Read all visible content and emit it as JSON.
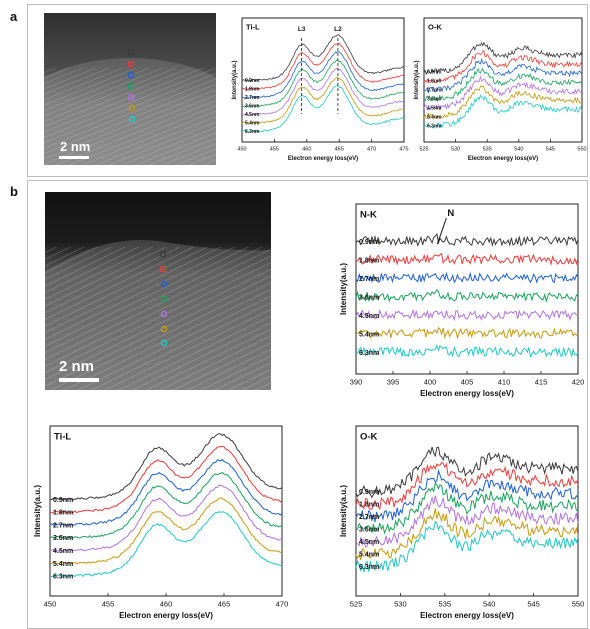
{
  "figure": {
    "panel_a_label": "a",
    "panel_b_label": "b",
    "scale_bar_a": "2 nm",
    "scale_bar_b": "2 nm",
    "colors": {
      "series": [
        "#3a3a3a",
        "#f03a3a",
        "#1f5fd8",
        "#1aa35c",
        "#b373e0",
        "#c79a10",
        "#22c7c7"
      ],
      "frame": "#bdbdbd"
    }
  },
  "chart_data": [
    {
      "id": "a-ti",
      "type": "line",
      "title": "Ti-L",
      "xlabel": "Electron energy loss(eV)",
      "ylabel": "Intensity(a.u.)",
      "xlim": [
        450,
        475
      ],
      "xticks": [
        450,
        455,
        460,
        465,
        470,
        475
      ],
      "peak_labels": [
        {
          "text": "L3",
          "x": 459.2
        },
        {
          "text": "L2",
          "x": 464.8
        }
      ],
      "series": [
        {
          "name": "0.9nm"
        },
        {
          "name": "1.8nm"
        },
        {
          "name": "2.7nm"
        },
        {
          "name": "3.6nm"
        },
        {
          "name": "4.5nm"
        },
        {
          "name": "5.4nm"
        },
        {
          "name": "6.3nm"
        }
      ]
    },
    {
      "id": "a-o",
      "type": "line",
      "title": "O-K",
      "xlabel": "Electron energy loss(eV)",
      "ylabel": "Intensity(a.u.)",
      "xlim": [
        525,
        550
      ],
      "xticks": [
        525,
        530,
        535,
        540,
        545,
        550
      ],
      "series": [
        {
          "name": "0.9nm"
        },
        {
          "name": "1.8nm"
        },
        {
          "name": "2.7nm"
        },
        {
          "name": "3.6nm"
        },
        {
          "name": "4.5nm"
        },
        {
          "name": "5.4nm"
        },
        {
          "name": "6.3nm"
        }
      ]
    },
    {
      "id": "b-n",
      "type": "line",
      "title": "N-K",
      "xlabel": "Electron energy loss(eV)",
      "ylabel": "Intensity(a.u.)",
      "xlim": [
        390,
        420
      ],
      "xticks": [
        390,
        395,
        400,
        405,
        410,
        415,
        420
      ],
      "annotation": {
        "text": "N",
        "x": 401
      },
      "series": [
        {
          "name": "0.9nm"
        },
        {
          "name": "1.8nm"
        },
        {
          "name": "2.7nm"
        },
        {
          "name": "3.6nm"
        },
        {
          "name": "4.5nm"
        },
        {
          "name": "5.4nm"
        },
        {
          "name": "6.3nm"
        }
      ]
    },
    {
      "id": "b-ti",
      "type": "line",
      "title": "Ti-L",
      "xlabel": "Electron energy loss(eV)",
      "ylabel": "Intensity(a.u.)",
      "xlim": [
        450,
        470
      ],
      "xticks": [
        450,
        455,
        460,
        465,
        470
      ],
      "series": [
        {
          "name": "0.9nm"
        },
        {
          "name": "1.8nm"
        },
        {
          "name": "2.7nm"
        },
        {
          "name": "3.6nm"
        },
        {
          "name": "4.5nm"
        },
        {
          "name": "5.4nm"
        },
        {
          "name": "6.3nm"
        }
      ]
    },
    {
      "id": "b-o",
      "type": "line",
      "title": "O-K",
      "xlabel": "Electron energy loss(eV)",
      "ylabel": "Intensity(a.u.)",
      "xlim": [
        525,
        550
      ],
      "xticks": [
        525,
        530,
        535,
        540,
        545,
        550
      ],
      "series": [
        {
          "name": "0.9nm"
        },
        {
          "name": "1.8nm"
        },
        {
          "name": "2.7nm"
        },
        {
          "name": "3.6nm"
        },
        {
          "name": "4.5nm"
        },
        {
          "name": "5.4nm"
        },
        {
          "name": "6.3nm"
        }
      ]
    }
  ]
}
